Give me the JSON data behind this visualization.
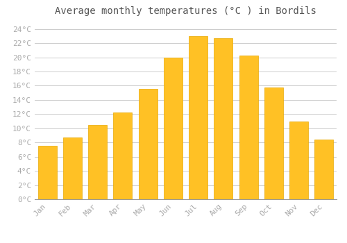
{
  "title": "Average monthly temperatures (°C ) in Bordils",
  "months": [
    "Jan",
    "Feb",
    "Mar",
    "Apr",
    "May",
    "Jun",
    "Jul",
    "Aug",
    "Sep",
    "Oct",
    "Nov",
    "Dec"
  ],
  "values": [
    7.5,
    8.7,
    10.5,
    12.2,
    15.6,
    20.0,
    23.0,
    22.7,
    20.3,
    15.8,
    11.0,
    8.4
  ],
  "bar_color": "#FFC125",
  "bar_edge_color": "#E8A800",
  "background_color": "#FFFFFF",
  "grid_color": "#CCCCCC",
  "ylim": [
    0,
    25
  ],
  "yticks": [
    0,
    2,
    4,
    6,
    8,
    10,
    12,
    14,
    16,
    18,
    20,
    22,
    24
  ],
  "title_fontsize": 10,
  "tick_fontsize": 8,
  "tick_font_color": "#AAAAAA",
  "title_color": "#555555"
}
